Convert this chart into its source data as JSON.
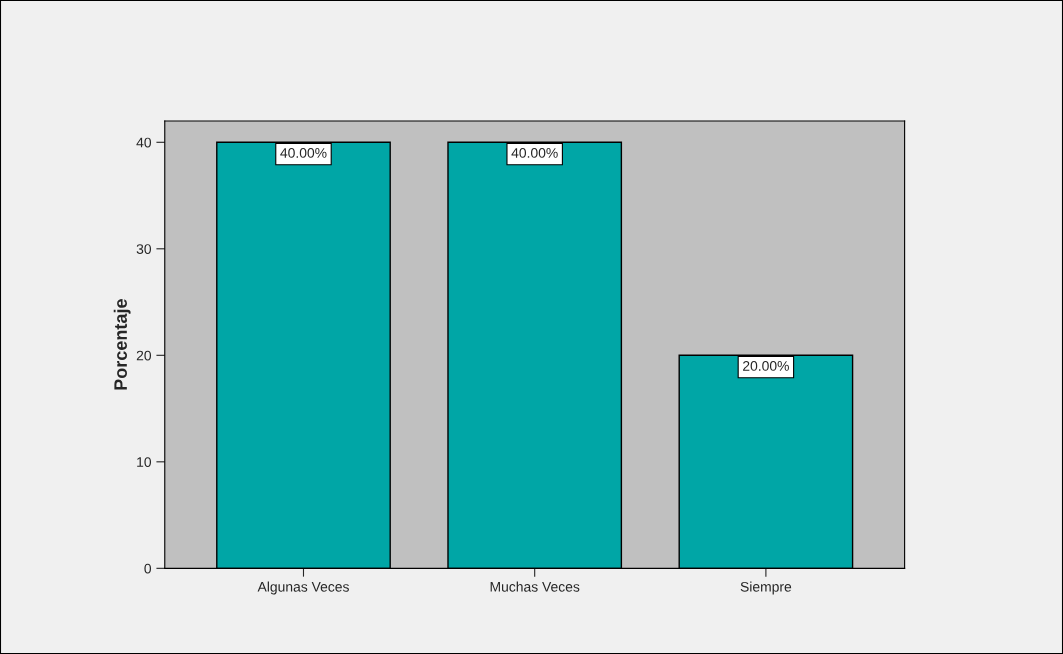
{
  "chart_data": {
    "type": "bar",
    "ylabel": "Porcentaje",
    "categories": [
      "Algunas Veces",
      "Muchas Veces",
      "Siempre"
    ],
    "values": [
      40,
      40,
      20
    ],
    "value_labels": [
      "40.00%",
      "40.00%",
      "20.00%"
    ],
    "color": "#00a6a6",
    "ylim": [
      0,
      42
    ],
    "yticks": [
      0,
      10,
      20,
      30,
      40
    ],
    "grid": false
  }
}
